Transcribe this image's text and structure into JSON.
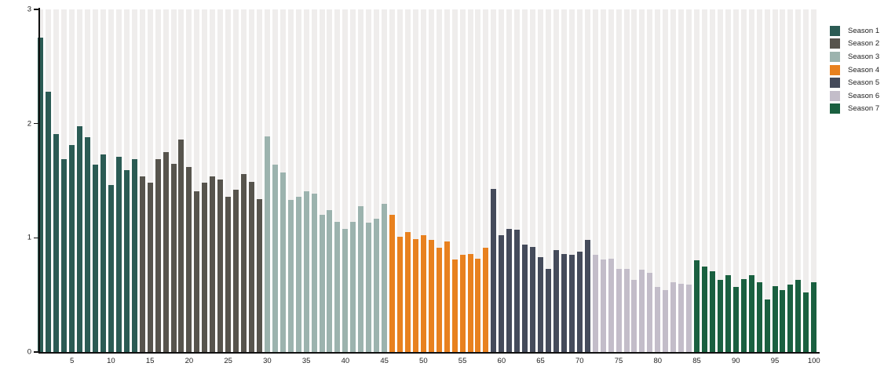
{
  "chart_data": {
    "type": "bar",
    "title": "",
    "xlabel": "",
    "ylabel": "",
    "ylim": [
      0,
      3
    ],
    "yticks": [
      0,
      1,
      2,
      3
    ],
    "xticks": [
      5,
      10,
      15,
      20,
      25,
      30,
      35,
      40,
      45,
      50,
      55,
      60,
      65,
      70,
      75,
      80,
      85,
      90,
      95,
      100
    ],
    "x_range": [
      1,
      100
    ],
    "grid": "vertical background stripes behind each bar, no horizontal gridlines",
    "legend_position": "top-right outside plot",
    "series": [
      {
        "name": "Season 1",
        "color": "#2b5b54",
        "start_x": 1,
        "values": [
          2.75,
          2.28,
          1.91,
          1.69,
          1.81,
          1.98,
          1.88,
          1.64,
          1.73,
          1.46,
          1.71,
          1.59,
          1.69
        ]
      },
      {
        "name": "Season 2",
        "color": "#57544d",
        "start_x": 14,
        "values": [
          1.54,
          1.48,
          1.69,
          1.75,
          1.65,
          1.86,
          1.62,
          1.41,
          1.48,
          1.54,
          1.51,
          1.36,
          1.42,
          1.56,
          1.49,
          1.34
        ]
      },
      {
        "name": "Season 3",
        "color": "#9cb3ae",
        "start_x": 30,
        "values": [
          1.89,
          1.64,
          1.57,
          1.33,
          1.36,
          1.41,
          1.39,
          1.2,
          1.24,
          1.14,
          1.08,
          1.14,
          1.28,
          1.13,
          1.17,
          1.3
        ]
      },
      {
        "name": "Season 4",
        "color": "#e8811f",
        "start_x": 46,
        "values": [
          1.2,
          1.01,
          1.05,
          0.99,
          1.02,
          0.98,
          0.91,
          0.97,
          0.81,
          0.85,
          0.86,
          0.82,
          0.91
        ]
      },
      {
        "name": "Season 5",
        "color": "#454b5b",
        "start_x": 59,
        "values": [
          1.43,
          1.02,
          1.08,
          1.07,
          0.94,
          0.92,
          0.83,
          0.73,
          0.89,
          0.86,
          0.85,
          0.88,
          0.98
        ]
      },
      {
        "name": "Season 6",
        "color": "#c3bdc9",
        "start_x": 72,
        "values": [
          0.85,
          0.81,
          0.82,
          0.73,
          0.73,
          0.63,
          0.72,
          0.69,
          0.57,
          0.54,
          0.61,
          0.6,
          0.59
        ]
      },
      {
        "name": "Season 7",
        "color": "#1a6040",
        "start_x": 85,
        "values": [
          0.8,
          0.75,
          0.71,
          0.63,
          0.67,
          0.57,
          0.64,
          0.67,
          0.61,
          0.46,
          0.58,
          0.54,
          0.59,
          0.63,
          0.52,
          0.61
        ]
      }
    ]
  },
  "legend": {
    "items": [
      {
        "label": "Season 1",
        "color": "#2b5b54"
      },
      {
        "label": "Season 2",
        "color": "#57544d"
      },
      {
        "label": "Season 3",
        "color": "#9cb3ae"
      },
      {
        "label": "Season 4",
        "color": "#e8811f"
      },
      {
        "label": "Season 5",
        "color": "#454b5b"
      },
      {
        "label": "Season 6",
        "color": "#c3bdc9"
      },
      {
        "label": "Season 7",
        "color": "#1a6040"
      }
    ]
  },
  "colors": {
    "background": "#ffffff",
    "stripe": "#efedec",
    "axis": "#111111",
    "tick_text": "#222222"
  }
}
